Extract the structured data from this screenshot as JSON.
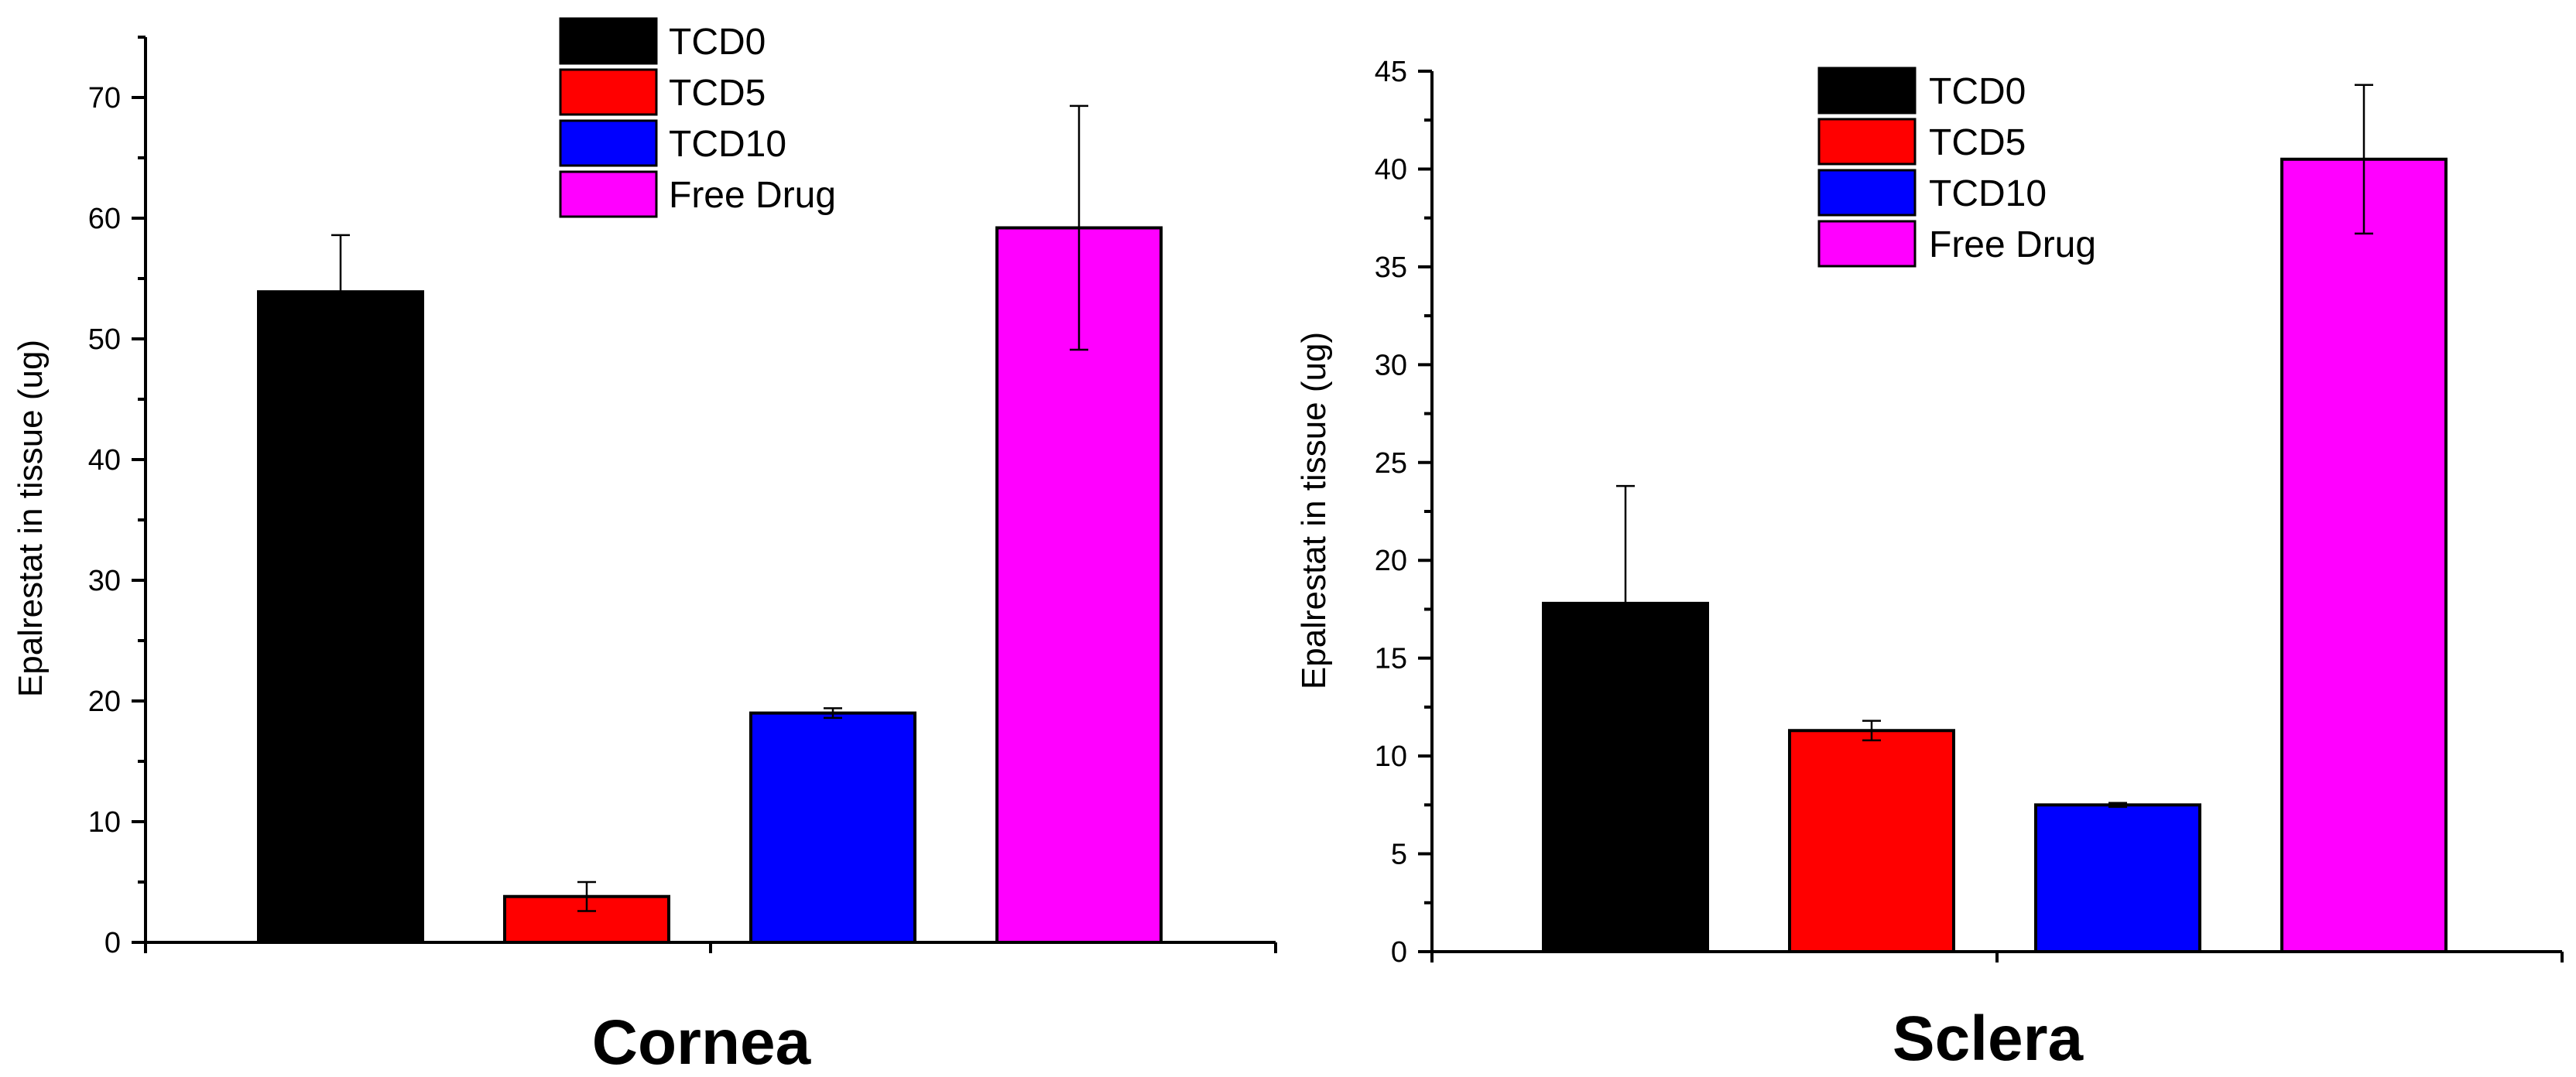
{
  "chart_data": [
    {
      "type": "bar",
      "title": "Cornea",
      "xlabel": "Cornea",
      "ylabel": "Epalrestat in tissue (ug)",
      "ylim": [
        0,
        75
      ],
      "yticks": [
        0,
        10,
        20,
        30,
        40,
        50,
        60,
        70
      ],
      "grid": false,
      "legend_position": "top-center",
      "categories": [
        "TCD0",
        "TCD5",
        "TCD10",
        "Free Drug"
      ],
      "colors": [
        "#000000",
        "#ff0000",
        "#0000ff",
        "#ff00ff"
      ],
      "values": [
        53.9,
        3.8,
        19.0,
        59.2
      ],
      "errors": [
        4.7,
        1.2,
        0.4,
        10.1
      ]
    },
    {
      "type": "bar",
      "title": "Sclera",
      "xlabel": "Sclera",
      "ylabel": "Epalrestat in tissue (ug)",
      "ylim": [
        0,
        45
      ],
      "yticks": [
        0,
        5,
        10,
        15,
        20,
        25,
        30,
        35,
        40,
        45
      ],
      "grid": false,
      "legend_position": "top-center",
      "categories": [
        "TCD0",
        "TCD5",
        "TCD10",
        "Free Drug"
      ],
      "colors": [
        "#000000",
        "#ff0000",
        "#0000ff",
        "#ff00ff"
      ],
      "values": [
        17.8,
        11.3,
        7.5,
        40.5
      ],
      "errors": [
        6.0,
        0.5,
        0.1,
        3.8
      ]
    }
  ]
}
